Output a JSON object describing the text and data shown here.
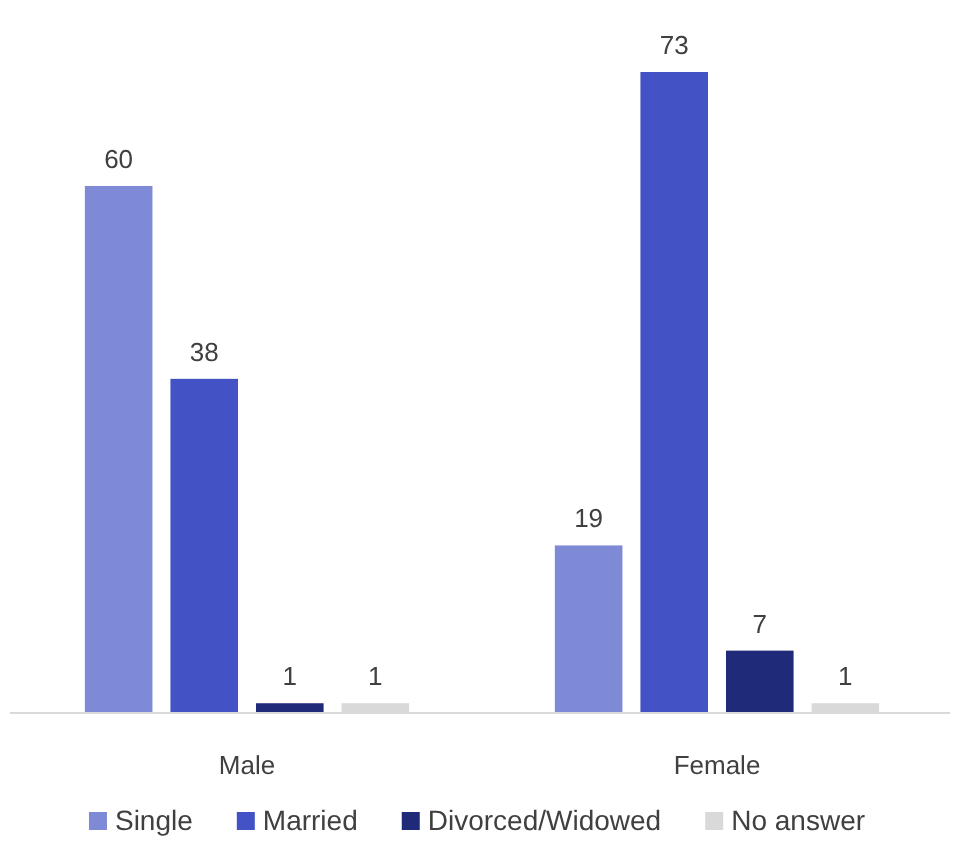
{
  "chart_data": {
    "type": "bar",
    "categories": [
      "Male",
      "Female"
    ],
    "series": [
      {
        "name": "Single",
        "color": "#7f8ad6",
        "values": [
          60,
          19
        ]
      },
      {
        "name": "Married",
        "color": "#4352c4",
        "values": [
          38,
          73
        ]
      },
      {
        "name": "Divorced/Widowed",
        "color": "#1f2a78",
        "values": [
          1,
          7
        ]
      },
      {
        "name": "No answer",
        "color": "#d9d9d9",
        "values": [
          1,
          1
        ]
      }
    ],
    "data_labels": true,
    "legend": "bottom",
    "tick_labels": "x"
  }
}
